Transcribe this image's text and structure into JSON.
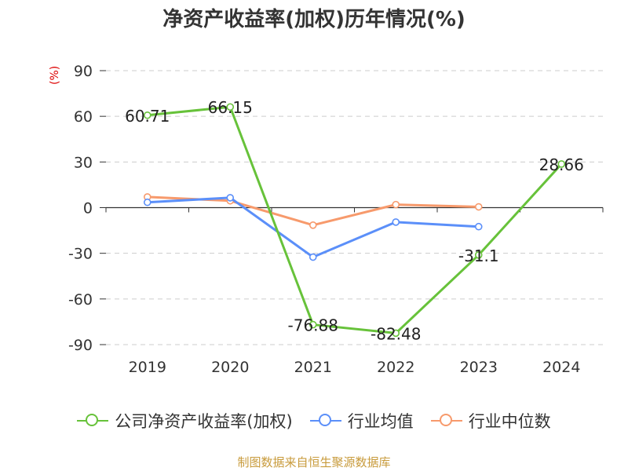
{
  "chart_data": {
    "type": "line",
    "title": "净资产收益率(加权)历年情况(%)",
    "ylabel": "(%)",
    "categories": [
      "2019",
      "2020",
      "2021",
      "2022",
      "2023",
      "2024"
    ],
    "ylim": [
      -90,
      90
    ],
    "yticks": [
      90,
      60,
      30,
      0,
      -30,
      -60,
      -90
    ],
    "grid": true,
    "legend_position": "bottom",
    "series": [
      {
        "name": "公司净资产收益率(加权)",
        "color": "#67c23a",
        "values": [
          60.71,
          66.15,
          -76.88,
          -82.48,
          -31.1,
          28.66
        ],
        "labels": [
          "60.71",
          "66.15",
          "-76.88",
          "-82.48",
          "-31.1",
          "28.66"
        ]
      },
      {
        "name": "行业均值",
        "color": "#5b8ff9",
        "values": [
          3.5,
          6.5,
          -32.5,
          -9.5,
          -12.5,
          null
        ]
      },
      {
        "name": "行业中位数",
        "color": "#f79a6c",
        "values": [
          7,
          4.5,
          -11.5,
          2,
          0.5,
          null
        ]
      }
    ]
  },
  "footer": {
    "source": "制图数据来自恒生聚源数据库"
  }
}
